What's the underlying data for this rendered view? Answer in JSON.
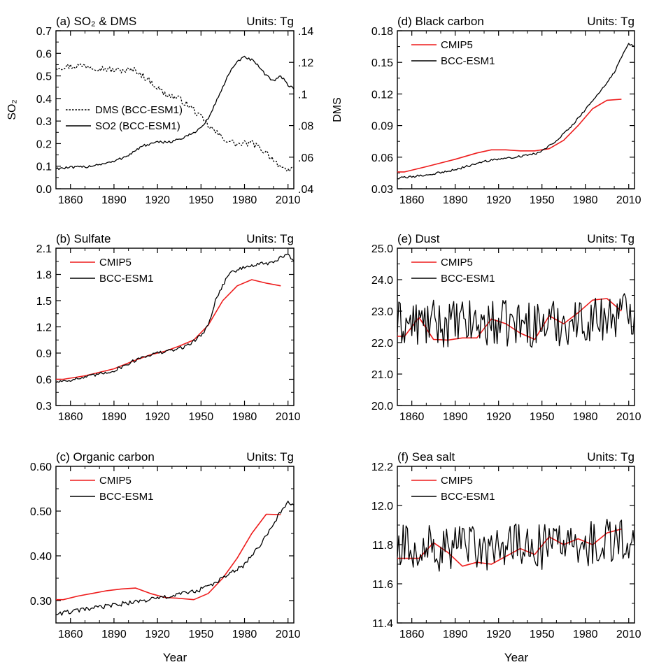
{
  "figure": {
    "xlabel": "Year"
  },
  "chart_data": [
    {
      "id": "a",
      "type": "line",
      "title": "(a) SO₂ & DMS",
      "units": "Units: Tg",
      "ylabel": "SO₂",
      "ylabel_right": "DMS",
      "xlim": [
        1850,
        2014
      ],
      "ylim": [
        0,
        0.7
      ],
      "ylim_right": [
        0.04,
        0.14
      ],
      "xticks": [
        1860,
        1890,
        1920,
        1950,
        1980,
        2010
      ],
      "xtick_labels": [
        "1860",
        "1890",
        "1920",
        "1950",
        "1980",
        "2010"
      ],
      "yticks": [
        0,
        0.1,
        0.2,
        0.3,
        0.4,
        0.5,
        0.6,
        0.7
      ],
      "ytick_labels": [
        "0.0",
        "0.1",
        "0.2",
        "0.3",
        "0.4",
        "0.5",
        "0.6",
        "0.7"
      ],
      "yticks_right": [
        0.04,
        0.06,
        0.08,
        0.1,
        0.12,
        0.14
      ],
      "ytick_labels_right": [
        ".04",
        ".06",
        ".08",
        ".1",
        ".12",
        ".14"
      ],
      "legend": "left-middle",
      "series": [
        {
          "name": "DMS (BCC-ESM1)",
          "axis": "right",
          "color": "#000000",
          "dash": "dotted",
          "noise": 0.002,
          "x": [
            1850,
            1870,
            1890,
            1905,
            1915,
            1925,
            1935,
            1945,
            1955,
            1965,
            1975,
            1985,
            1995,
            2005,
            2009,
            2014
          ],
          "y": [
            0.117,
            0.118,
            0.115,
            0.115,
            0.108,
            0.1,
            0.097,
            0.09,
            0.08,
            0.072,
            0.068,
            0.069,
            0.063,
            0.054,
            0.05,
            0.054
          ]
        },
        {
          "name": "SO2 (BCC-ESM1)",
          "axis": "left",
          "color": "#000000",
          "dash": "solid",
          "noise": 0.006,
          "x": [
            1850,
            1870,
            1890,
            1900,
            1910,
            1920,
            1930,
            1940,
            1950,
            1955,
            1960,
            1965,
            1970,
            1975,
            1980,
            1985,
            1990,
            1995,
            2000,
            2005,
            2010,
            2014
          ],
          "y": [
            0.09,
            0.097,
            0.12,
            0.15,
            0.19,
            0.205,
            0.21,
            0.23,
            0.27,
            0.31,
            0.38,
            0.45,
            0.52,
            0.56,
            0.585,
            0.57,
            0.54,
            0.5,
            0.48,
            0.5,
            0.46,
            0.445
          ]
        }
      ]
    },
    {
      "id": "b",
      "type": "line",
      "title": "(b) Sulfate",
      "units": "Units: Tg",
      "xlim": [
        1850,
        2014
      ],
      "ylim": [
        0.3,
        2.1
      ],
      "xticks": [
        1860,
        1890,
        1920,
        1950,
        1980,
        2010
      ],
      "xtick_labels": [
        "1860",
        "1890",
        "1920",
        "1950",
        "1980",
        "2010"
      ],
      "yticks": [
        0.3,
        0.6,
        0.9,
        1.2,
        1.5,
        1.8,
        2.1
      ],
      "ytick_labels": [
        "0.3",
        "0.6",
        "0.9",
        "1.2",
        "1.5",
        "1.8",
        "2.1"
      ],
      "legend": "top-left",
      "series": [
        {
          "name": "CMIP5",
          "color": "#ee1c1c",
          "dash": "solid",
          "noise": 0,
          "x": [
            1850,
            1855,
            1870,
            1890,
            1905,
            1915,
            1925,
            1935,
            1945,
            1955,
            1965,
            1975,
            1985,
            1995,
            2005
          ],
          "y": [
            0.6,
            0.6,
            0.64,
            0.72,
            0.82,
            0.88,
            0.92,
            0.98,
            1.05,
            1.22,
            1.5,
            1.67,
            1.74,
            1.7,
            1.67
          ]
        },
        {
          "name": "BCC-ESM1",
          "color": "#000000",
          "dash": "solid",
          "noise": 0.02,
          "x": [
            1850,
            1870,
            1890,
            1900,
            1910,
            1920,
            1930,
            1940,
            1950,
            1955,
            1960,
            1965,
            1970,
            1975,
            1980,
            1990,
            2000,
            2005,
            2010,
            2014
          ],
          "y": [
            0.57,
            0.62,
            0.7,
            0.78,
            0.86,
            0.9,
            0.93,
            0.98,
            1.1,
            1.22,
            1.5,
            1.68,
            1.82,
            1.85,
            1.88,
            1.92,
            1.93,
            2.0,
            2.02,
            1.97
          ]
        }
      ]
    },
    {
      "id": "c",
      "type": "line",
      "title": "(c) Organic  carbon",
      "units": "Units: Tg",
      "xlim": [
        1850,
        2014
      ],
      "ylim": [
        0.25,
        0.6
      ],
      "xticks": [
        1860,
        1890,
        1920,
        1950,
        1980,
        2010
      ],
      "xtick_labels": [
        "1860",
        "1890",
        "1920",
        "1950",
        "1980",
        "2010"
      ],
      "yticks": [
        0.3,
        0.4,
        0.5,
        0.6
      ],
      "ytick_labels": [
        "0.30",
        "0.40",
        "0.50",
        "0.60"
      ],
      "legend": "top-left",
      "series": [
        {
          "name": "CMIP5",
          "color": "#ee1c1c",
          "dash": "solid",
          "noise": 0,
          "x": [
            1850,
            1855,
            1865,
            1875,
            1885,
            1895,
            1905,
            1915,
            1925,
            1935,
            1945,
            1955,
            1965,
            1975,
            1985,
            1995,
            2005
          ],
          "y": [
            0.302,
            0.302,
            0.31,
            0.316,
            0.322,
            0.326,
            0.328,
            0.316,
            0.307,
            0.305,
            0.302,
            0.316,
            0.35,
            0.395,
            0.45,
            0.493,
            0.492
          ]
        },
        {
          "name": "BCC-ESM1",
          "color": "#000000",
          "dash": "solid",
          "noise": 0.005,
          "x": [
            1850,
            1870,
            1890,
            1910,
            1930,
            1950,
            1960,
            1970,
            1980,
            1990,
            2000,
            2005,
            2010,
            2014
          ],
          "y": [
            0.27,
            0.28,
            0.29,
            0.3,
            0.31,
            0.325,
            0.34,
            0.36,
            0.38,
            0.42,
            0.47,
            0.5,
            0.52,
            0.51
          ]
        }
      ]
    },
    {
      "id": "d",
      "type": "line",
      "title": "(d) Black  carbon",
      "units": "Units: Tg",
      "xlim": [
        1850,
        2014
      ],
      "ylim": [
        0.03,
        0.18
      ],
      "xticks": [
        1860,
        1890,
        1920,
        1950,
        1980,
        2010
      ],
      "xtick_labels": [
        "1860",
        "1890",
        "1920",
        "1950",
        "1980",
        "2010"
      ],
      "yticks": [
        0.03,
        0.06,
        0.09,
        0.12,
        0.15,
        0.18
      ],
      "ytick_labels": [
        "0.03",
        "0.06",
        "0.09",
        "0.12",
        "0.15",
        "0.18"
      ],
      "legend": "top-left",
      "series": [
        {
          "name": "CMIP5",
          "color": "#ee1c1c",
          "dash": "solid",
          "noise": 0,
          "x": [
            1850,
            1855,
            1870,
            1890,
            1905,
            1915,
            1925,
            1935,
            1945,
            1955,
            1965,
            1975,
            1985,
            1995,
            2005
          ],
          "y": [
            0.046,
            0.046,
            0.051,
            0.058,
            0.064,
            0.067,
            0.067,
            0.066,
            0.066,
            0.068,
            0.076,
            0.09,
            0.106,
            0.114,
            0.115
          ]
        },
        {
          "name": "BCC-ESM1",
          "color": "#000000",
          "dash": "solid",
          "noise": 0.001,
          "x": [
            1850,
            1870,
            1890,
            1910,
            1930,
            1945,
            1950,
            1960,
            1970,
            1980,
            1990,
            2000,
            2005,
            2010,
            2014
          ],
          "y": [
            0.04,
            0.043,
            0.048,
            0.056,
            0.06,
            0.063,
            0.066,
            0.076,
            0.089,
            0.105,
            0.122,
            0.14,
            0.155,
            0.168,
            0.165
          ]
        }
      ]
    },
    {
      "id": "e",
      "type": "line",
      "title": "(e) Dust",
      "units": "Units: Tg",
      "xlim": [
        1850,
        2014
      ],
      "ylim": [
        20,
        25
      ],
      "xticks": [
        1860,
        1890,
        1920,
        1950,
        1980,
        2010
      ],
      "xtick_labels": [
        "1860",
        "1890",
        "1920",
        "1950",
        "1980",
        "2010"
      ],
      "yticks": [
        20,
        21,
        22,
        23,
        24,
        25
      ],
      "ytick_labels": [
        "20.0",
        "21.0",
        "22.0",
        "23.0",
        "24.0",
        "25.0"
      ],
      "legend": "top-left",
      "series": [
        {
          "name": "CMIP5",
          "color": "#ee1c1c",
          "dash": "solid",
          "noise": 0,
          "x": [
            1850,
            1855,
            1865,
            1875,
            1885,
            1895,
            1905,
            1915,
            1925,
            1935,
            1945,
            1955,
            1965,
            1975,
            1985,
            1995,
            2005
          ],
          "y": [
            22.2,
            22.2,
            22.8,
            22.1,
            22.08,
            22.15,
            22.15,
            22.75,
            22.6,
            22.3,
            22.1,
            22.85,
            22.6,
            22.95,
            23.35,
            23.4,
            23.0
          ]
        },
        {
          "name": "BCC-ESM1",
          "color": "#000000",
          "dash": "solid",
          "noise": 0.75,
          "x": [
            1850,
            1900,
            1950,
            1980,
            2014
          ],
          "y": [
            22.6,
            22.6,
            22.6,
            22.7,
            23.0
          ]
        }
      ]
    },
    {
      "id": "f",
      "type": "line",
      "title": "(f) Sea salt",
      "units": "Units: Tg",
      "xlim": [
        1850,
        2014
      ],
      "ylim": [
        11.4,
        12.2
      ],
      "xticks": [
        1860,
        1890,
        1920,
        1950,
        1980,
        2010
      ],
      "xtick_labels": [
        "1860",
        "1890",
        "1920",
        "1950",
        "1980",
        "2010"
      ],
      "yticks": [
        11.4,
        11.6,
        11.8,
        12,
        12.2
      ],
      "ytick_labels": [
        "11.4",
        "11.6",
        "11.8",
        "12.0",
        "12.2"
      ],
      "legend": "top-left",
      "series": [
        {
          "name": "CMIP5",
          "color": "#ee1c1c",
          "dash": "solid",
          "noise": 0,
          "x": [
            1850,
            1855,
            1865,
            1875,
            1885,
            1895,
            1905,
            1915,
            1925,
            1935,
            1945,
            1955,
            1965,
            1975,
            1985,
            1995,
            2005
          ],
          "y": [
            11.73,
            11.73,
            11.73,
            11.81,
            11.76,
            11.69,
            11.71,
            11.7,
            11.74,
            11.78,
            11.75,
            11.84,
            11.8,
            11.83,
            11.8,
            11.86,
            11.88
          ]
        },
        {
          "name": "BCC-ESM1",
          "color": "#000000",
          "dash": "solid",
          "noise": 0.12,
          "x": [
            1850,
            1900,
            1950,
            1980,
            2014
          ],
          "y": [
            11.78,
            11.78,
            11.79,
            11.8,
            11.85
          ]
        }
      ]
    }
  ]
}
